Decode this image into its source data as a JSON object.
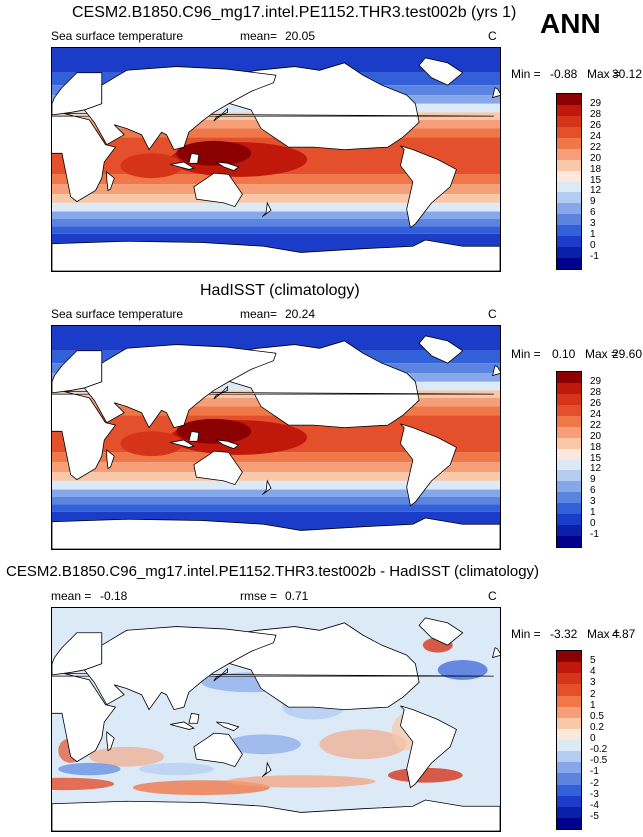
{
  "season": "ANN",
  "panels": [
    {
      "title": "CESM2.B1850.C96_mg17.intel.PE1152.THR3.test002b (yrs 1)",
      "variable": "Sea surface temperature",
      "mean_label": "mean=",
      "mean": "20.05",
      "units": "C",
      "min_label": "Min =",
      "min": "-0.88",
      "max_label": "Max =",
      "max": "30.12"
    },
    {
      "title": "HadISST (climatology)",
      "variable": "Sea surface temperature",
      "mean_label": "mean=",
      "mean": "20.24",
      "units": "C",
      "min_label": "Min =",
      "min": "0.10",
      "max_label": "Max =",
      "max": "29.60"
    },
    {
      "title": "CESM2.B1850.C96_mg17.intel.PE1152.THR3.test002b - HadISST (climatology)",
      "mean_label": "mean =",
      "mean": "-0.18",
      "rmse_label": "rmse =",
      "rmse": "0.71",
      "units": "C",
      "min_label": "Min =",
      "min": "-3.32",
      "max_label": "Max =",
      "max": "4.87"
    }
  ],
  "colorbar_sst": {
    "labels": [
      "29",
      "28",
      "26",
      "24",
      "22",
      "20",
      "18",
      "15",
      "12",
      "9",
      "6",
      "3",
      "1",
      "0",
      "-1"
    ],
    "colors": [
      "#8b0000",
      "#c0180a",
      "#d6341a",
      "#e4502c",
      "#f07848",
      "#f59e78",
      "#fac8a8",
      "#fbe8dc",
      "#dceaf8",
      "#b4ccf2",
      "#86a8ea",
      "#5a84e0",
      "#3260d8",
      "#1a3cc8",
      "#0a20a8",
      "#00008c"
    ]
  },
  "colorbar_diff": {
    "labels": [
      "5",
      "4",
      "3",
      "2",
      "1",
      "0.5",
      "0.2",
      "0",
      "-0.2",
      "-0.5",
      "-1",
      "-2",
      "-3",
      "-4",
      "-5"
    ],
    "colors": [
      "#8b0000",
      "#c0180a",
      "#d6341a",
      "#e4502c",
      "#f07848",
      "#f59e78",
      "#fac8a8",
      "#fbe8dc",
      "#dceaf8",
      "#b4ccf2",
      "#86a8ea",
      "#5a84e0",
      "#3260d8",
      "#1a3cc8",
      "#0a20a8",
      "#00008c"
    ]
  }
}
